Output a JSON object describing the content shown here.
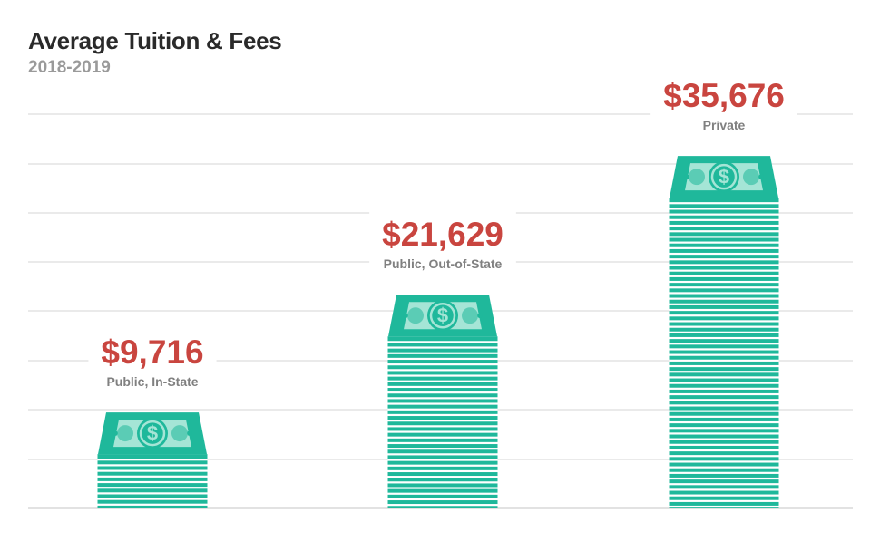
{
  "chart_data": {
    "type": "bar",
    "title": "Average Tuition & Fees",
    "subtitle": "2018-2019",
    "categories": [
      "Public, In-State",
      "Public, Out-of-State",
      "Private"
    ],
    "values": [
      9716,
      21629,
      35676
    ],
    "value_labels": [
      "$9,716",
      "$21,629",
      "$35,676"
    ],
    "ylim": [
      0,
      40000
    ],
    "grid": true,
    "bar_style": "stack-of-dollar-bills",
    "colors": {
      "bar": "#1fb89b",
      "bill_light": "#a5e5d6",
      "stripe": "#ffffff",
      "value_label": "#c9453f",
      "category_label": "#808080",
      "grid": "#dddddd"
    }
  }
}
